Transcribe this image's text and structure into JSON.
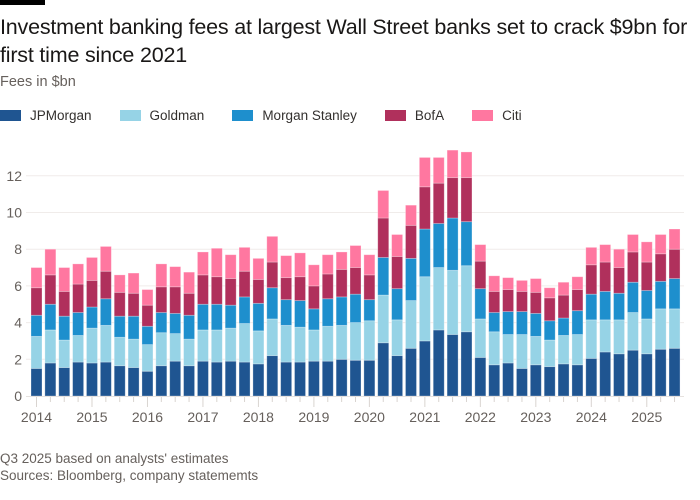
{
  "header": {
    "title": "Investment banking fees at largest Wall Street banks set to crack $9bn for first time since 2021",
    "subtitle": "Fees in $bn"
  },
  "legend": [
    {
      "label": "JPMorgan",
      "color": "#1f5591"
    },
    {
      "label": "Goldman",
      "color": "#96d3e6"
    },
    {
      "label": "Morgan Stanley",
      "color": "#1e8fcd"
    },
    {
      "label": "BofA",
      "color": "#b0305c"
    },
    {
      "label": "Citi",
      "color": "#ff77a0"
    }
  ],
  "footer": {
    "note": "Q3 2025 based on analysts' estimates",
    "source": "Sources: Bloomberg, company statememts"
  },
  "chart_data": {
    "type": "bar",
    "stacked": true,
    "title": "Investment banking fees at largest Wall Street banks set to crack $9bn for first time since 2021",
    "subtitle": "Fees in $bn",
    "xlabel": "",
    "ylabel": "Fees in $bn",
    "ylim": [
      0,
      13.5
    ],
    "yticks": [
      0,
      2,
      4,
      6,
      8,
      10,
      12
    ],
    "xtick_labels": [
      "2014",
      "2015",
      "2016",
      "2017",
      "2018",
      "2019",
      "2020",
      "2021",
      "2022",
      "2023",
      "2024",
      "2025"
    ],
    "grid": true,
    "legend_position": "top-left",
    "categories": [
      "2014 Q1",
      "2014 Q2",
      "2014 Q3",
      "2014 Q4",
      "2015 Q1",
      "2015 Q2",
      "2015 Q3",
      "2015 Q4",
      "2016 Q1",
      "2016 Q2",
      "2016 Q3",
      "2016 Q4",
      "2017 Q1",
      "2017 Q2",
      "2017 Q3",
      "2017 Q4",
      "2018 Q1",
      "2018 Q2",
      "2018 Q3",
      "2018 Q4",
      "2019 Q1",
      "2019 Q2",
      "2019 Q3",
      "2019 Q4",
      "2020 Q1",
      "2020 Q2",
      "2020 Q3",
      "2020 Q4",
      "2021 Q1",
      "2021 Q2",
      "2021 Q3",
      "2021 Q4",
      "2022 Q1",
      "2022 Q2",
      "2022 Q3",
      "2022 Q4",
      "2023 Q1",
      "2023 Q2",
      "2023 Q3",
      "2023 Q4",
      "2024 Q1",
      "2024 Q2",
      "2024 Q3",
      "2024 Q4",
      "2025 Q1",
      "2025 Q2",
      "2025 Q3"
    ],
    "series": [
      {
        "name": "JPMorgan",
        "values": [
          1.5,
          1.8,
          1.55,
          1.85,
          1.8,
          1.85,
          1.65,
          1.55,
          1.35,
          1.65,
          1.9,
          1.65,
          1.9,
          1.85,
          1.9,
          1.85,
          1.75,
          2.2,
          1.85,
          1.85,
          1.9,
          1.9,
          2.0,
          1.95,
          1.95,
          2.9,
          2.2,
          2.6,
          3.0,
          3.6,
          3.35,
          3.5,
          2.1,
          1.7,
          1.8,
          1.5,
          1.7,
          1.6,
          1.75,
          1.7,
          2.05,
          2.4,
          2.3,
          2.5,
          2.3,
          2.55,
          2.6
        ]
      },
      {
        "name": "Goldman",
        "values": [
          1.75,
          1.8,
          1.5,
          1.45,
          1.9,
          2.0,
          1.55,
          1.55,
          1.45,
          1.8,
          1.5,
          1.45,
          1.7,
          1.75,
          1.8,
          2.1,
          1.8,
          2.0,
          2.0,
          1.9,
          1.7,
          1.9,
          1.85,
          2.05,
          2.15,
          2.6,
          1.95,
          2.6,
          3.5,
          3.4,
          3.5,
          3.6,
          2.1,
          1.8,
          1.55,
          1.85,
          1.55,
          1.45,
          1.55,
          1.65,
          2.1,
          1.75,
          1.85,
          2.05,
          1.9,
          2.2,
          2.15
        ]
      },
      {
        "name": "Morgan Stanley",
        "values": [
          1.15,
          1.4,
          1.3,
          1.25,
          1.15,
          1.45,
          1.15,
          1.25,
          1.0,
          1.1,
          1.1,
          1.3,
          1.4,
          1.4,
          1.25,
          1.45,
          1.5,
          1.7,
          1.4,
          1.45,
          1.15,
          1.5,
          1.55,
          1.55,
          1.15,
          2.05,
          1.7,
          2.3,
          2.6,
          2.4,
          2.85,
          2.4,
          1.65,
          1.05,
          1.25,
          1.25,
          1.25,
          1.05,
          0.95,
          1.3,
          1.4,
          1.55,
          1.45,
          1.65,
          1.55,
          1.5,
          1.65
        ]
      },
      {
        "name": "BofA",
        "values": [
          1.5,
          1.6,
          1.35,
          1.55,
          1.45,
          1.5,
          1.3,
          1.25,
          1.15,
          1.4,
          1.45,
          1.2,
          1.6,
          1.5,
          1.45,
          1.4,
          1.3,
          1.4,
          1.2,
          1.3,
          1.25,
          1.35,
          1.5,
          1.45,
          1.35,
          2.15,
          1.75,
          1.8,
          2.3,
          2.2,
          2.2,
          2.4,
          1.5,
          1.15,
          1.2,
          1.1,
          1.15,
          1.25,
          1.25,
          1.15,
          1.6,
          1.6,
          1.4,
          1.65,
          1.55,
          1.5,
          1.6
        ]
      },
      {
        "name": "Citi",
        "values": [
          1.1,
          1.4,
          1.3,
          1.1,
          1.25,
          1.35,
          0.95,
          1.1,
          0.85,
          1.25,
          1.1,
          1.15,
          1.25,
          1.55,
          1.3,
          1.3,
          1.15,
          1.4,
          1.2,
          1.3,
          1.15,
          1.05,
          0.95,
          1.2,
          1.1,
          1.5,
          1.2,
          1.1,
          1.6,
          1.4,
          1.5,
          1.4,
          0.9,
          0.85,
          0.65,
          0.6,
          0.75,
          0.55,
          0.7,
          0.7,
          0.95,
          0.95,
          1.0,
          0.95,
          1.1,
          1.05,
          1.1
        ]
      }
    ],
    "totals": [
      7.0,
      8.0,
      7.0,
      7.2,
      7.55,
      8.15,
      6.6,
      6.7,
      5.8,
      7.2,
      7.05,
      6.75,
      7.85,
      8.05,
      7.7,
      8.1,
      7.5,
      8.7,
      7.65,
      7.8,
      7.15,
      7.7,
      7.85,
      8.2,
      7.7,
      11.2,
      8.8,
      10.4,
      13.0,
      13.0,
      13.4,
      13.3,
      8.25,
      6.55,
      6.45,
      6.3,
      6.4,
      5.9,
      6.2,
      6.5,
      8.1,
      8.25,
      8.0,
      8.8,
      8.4,
      8.8,
      9.1
    ],
    "footnote": "Q3 2025 based on analysts' estimates",
    "source": "Sources: Bloomberg, company statememts"
  }
}
